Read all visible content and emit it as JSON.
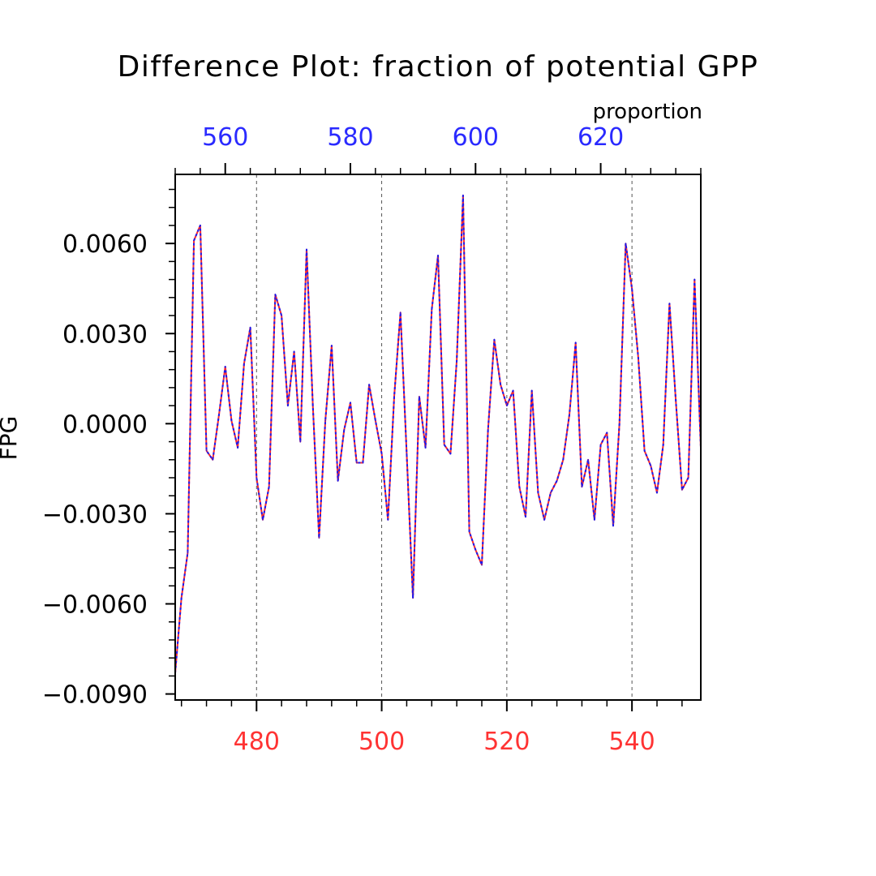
{
  "chart_data": {
    "type": "line",
    "title": "Difference Plot: fraction of potential GPP",
    "units_label": "proportion",
    "ylabel": "FPG",
    "xlim": [
      467,
      551
    ],
    "ylim": [
      -0.0092,
      0.0083
    ],
    "yticks": [
      -0.009,
      -0.006,
      -0.003,
      0.0,
      0.003,
      0.006
    ],
    "ytick_labels": [
      "−0.0090",
      "−0.0060",
      "−0.0030",
      "0.0000",
      "0.0030",
      "0.0060"
    ],
    "xticks_bottom": [
      480,
      500,
      520,
      540
    ],
    "xtick_labels_bottom": [
      "480",
      "500",
      "520",
      "540"
    ],
    "xticks_top": [
      560,
      580,
      600,
      620
    ],
    "xtick_labels_top": [
      "560",
      "580",
      "600",
      "620"
    ],
    "top_axis_offset": 85,
    "grid": "vertical-dashed",
    "colors": {
      "bottom_axis": "#ff3333",
      "top_axis": "#2a2aff",
      "series_line_1": "#ff2a2a",
      "series_line_2": "#1a1aee",
      "frame": "#000000",
      "grid": "#555555"
    },
    "x": [
      467,
      468,
      469,
      470,
      471,
      472,
      473,
      474,
      475,
      476,
      477,
      478,
      479,
      480,
      481,
      482,
      483,
      484,
      485,
      486,
      487,
      488,
      489,
      490,
      491,
      492,
      493,
      494,
      495,
      496,
      497,
      498,
      499,
      500,
      501,
      502,
      503,
      504,
      505,
      506,
      507,
      508,
      509,
      510,
      511,
      512,
      513,
      514,
      515,
      516,
      517,
      518,
      519,
      520,
      521,
      522,
      523,
      524,
      525,
      526,
      527,
      528,
      529,
      530,
      531,
      532,
      533,
      534,
      535,
      536,
      537,
      538,
      539,
      540,
      541,
      542,
      543,
      544,
      545,
      546,
      547,
      548,
      549,
      550,
      551
    ],
    "series": [
      {
        "values": [
          -0.0083,
          -0.0058,
          -0.0043,
          0.0061,
          0.0066,
          -0.0009,
          -0.0012,
          0.0003,
          0.0019,
          0.0001,
          -0.0008,
          0.002,
          0.0032,
          -0.0018,
          -0.0032,
          -0.0021,
          0.0043,
          0.0036,
          0.0006,
          0.0024,
          -0.0006,
          0.0058,
          0.0006,
          -0.0038,
          0.0001,
          0.0026,
          -0.0019,
          -0.0002,
          0.0007,
          -0.0013,
          -0.0013,
          0.0013,
          0.0001,
          -0.001,
          -0.0032,
          0.0009,
          0.0037,
          -0.001,
          -0.0058,
          0.0009,
          -0.0008,
          0.0038,
          0.0056,
          -0.0007,
          -0.001,
          0.0021,
          0.0076,
          -0.0036,
          -0.0042,
          -0.0047,
          -0.0002,
          0.0028,
          0.0013,
          0.0006,
          0.0011,
          -0.0021,
          -0.0031,
          0.0011,
          -0.0023,
          -0.0032,
          -0.0023,
          -0.0019,
          -0.0012,
          0.0003,
          0.0027,
          -0.0021,
          -0.0012,
          -0.0032,
          -0.0007,
          -0.0003,
          -0.0034,
          0.0,
          0.006,
          0.0045,
          0.0022,
          -0.0009,
          -0.0014,
          -0.0023,
          -0.0007,
          0.004,
          0.0008,
          -0.0022,
          -0.0018,
          0.0048,
          -0.0008
        ]
      }
    ]
  }
}
